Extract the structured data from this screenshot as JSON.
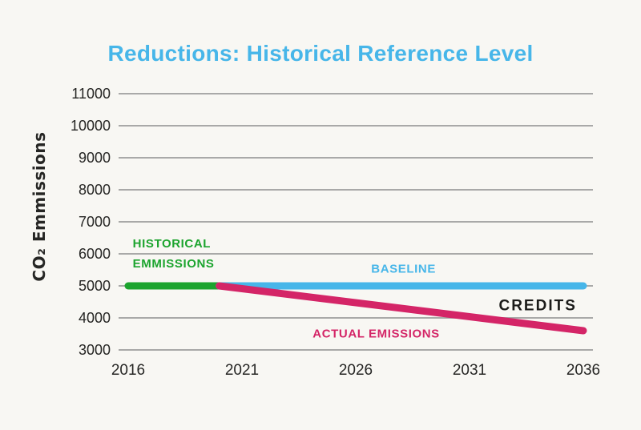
{
  "page": {
    "title": "Reductions: Historical Reference Level"
  },
  "colors": {
    "background": "#f8f7f3",
    "title": "#47b6e9",
    "grid": "#9e9e9e",
    "axis_text": "#262624",
    "green": "#1ca42e",
    "blue": "#47b6e9",
    "pink": "#d42567",
    "black": "#1b1b19"
  },
  "chart_data": {
    "type": "line",
    "title": "Reductions: Historical Reference Level",
    "xlabel": "",
    "ylabel": "CO₂ Emmissions",
    "x_range": [
      2016,
      2036
    ],
    "y_range": [
      3000,
      11000
    ],
    "x_ticks": [
      2016,
      2021,
      2026,
      2031,
      2036
    ],
    "y_ticks": [
      11000,
      10000,
      9000,
      8000,
      7000,
      6000,
      5000,
      4000,
      3000
    ],
    "grid": "horizontal",
    "legend": "inline-annotations",
    "series": [
      {
        "name": "Historical Emmissions",
        "color": "#1ca42e",
        "points": [
          [
            2016,
            5000
          ],
          [
            2020,
            5000
          ]
        ]
      },
      {
        "name": "Baseline",
        "color": "#47b6e9",
        "points": [
          [
            2020,
            5000
          ],
          [
            2036,
            5000
          ]
        ]
      },
      {
        "name": "Actual Emissions",
        "color": "#d42567",
        "points": [
          [
            2020,
            5000
          ],
          [
            2036,
            3600
          ]
        ]
      }
    ],
    "annotations": [
      {
        "text": "HISTORICAL\nEMMISSIONS",
        "color_key": "green",
        "x": 2016.2,
        "y": 6000,
        "align": "left",
        "emphasis": false
      },
      {
        "text": "BASELINE",
        "color_key": "blue",
        "x": 2028.1,
        "y": 5525,
        "align": "center",
        "emphasis": false
      },
      {
        "text": "CREDITS",
        "color_key": "black",
        "x": 2034.0,
        "y": 4375,
        "align": "center",
        "emphasis": true
      },
      {
        "text": "ACTUAL EMISSIONS",
        "color_key": "pink",
        "x": 2026.9,
        "y": 3500,
        "align": "center",
        "emphasis": false
      }
    ]
  }
}
